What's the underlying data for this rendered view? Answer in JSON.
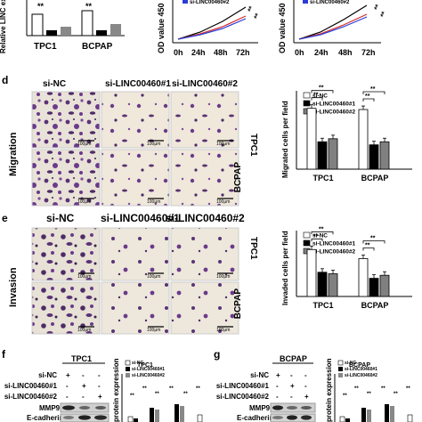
{
  "panels": {
    "top": {
      "qpcr": {
        "ylabel": "Relative LINC expression",
        "groups": [
          "TPC1",
          "BCPAP"
        ],
        "sig": [
          "**",
          "**"
        ]
      },
      "cck8_a": {
        "ylabel": "OD value 450",
        "legend": "si-LINC00460#2",
        "x": [
          "0h",
          "24h",
          "48h",
          "72h"
        ],
        "sig": [
          "**",
          "**"
        ]
      },
      "cck8_b": {
        "ylabel": "OD value 450",
        "legend": "si-LINC00460#2",
        "x": [
          "0h",
          "24h",
          "48h",
          "72h"
        ],
        "sig": [
          "**",
          "**"
        ]
      }
    },
    "d": {
      "letter": "d",
      "row_title": "Migration",
      "col_titles": [
        "si-NC",
        "si-LINC00460#1",
        "si-LINC00460#2"
      ],
      "row_labels": [
        "TPC1",
        "BCPAP"
      ],
      "scale": "100μm"
    },
    "e": {
      "letter": "e",
      "row_title": "Invasion",
      "col_titles": [
        "si-NC",
        "si-LINC00460#1",
        "si-LINC00460#2"
      ],
      "row_labels": [
        "TPC1",
        "BCPAP"
      ],
      "scale": "100μm"
    },
    "f": {
      "letter": "f",
      "blot_title": "TPC1",
      "row_labels": [
        "si-NC",
        "si-LINC00460#1",
        "si-LINC00460#2"
      ],
      "signs": [
        [
          "+",
          "-",
          "-"
        ],
        [
          "-",
          "+",
          "-"
        ],
        [
          "-",
          "-",
          "+"
        ]
      ],
      "proteins": [
        "MMP9",
        "E-cadherin"
      ],
      "chart_title": "TPC1",
      "ylabel": "protein expression",
      "legend": [
        "si-NC",
        "si-LINC00460#1",
        "si-LINC00460#2"
      ],
      "sig": "**"
    },
    "g": {
      "letter": "g",
      "blot_title": "BCPAP",
      "row_labels": [
        "si-NC",
        "si-LINC00460#1",
        "si-LINC00460#2"
      ],
      "signs": [
        [
          "+",
          "-",
          "-"
        ],
        [
          "-",
          "+",
          "-"
        ],
        [
          "-",
          "-",
          "+"
        ]
      ],
      "proteins": [
        "MMP9",
        "E-cadherin"
      ],
      "chart_title": "BCPAP",
      "ylabel": "protein expression",
      "legend": [
        "si-NC",
        "si-LINC00460#1",
        "si-LINC00460#2"
      ],
      "sig": "**"
    }
  },
  "chart_data": [
    {
      "type": "bar",
      "title": "",
      "ylabel": "Migrated cells per field",
      "categories": [
        "TPC1",
        "BCPAP"
      ],
      "series": [
        {
          "name": "si-NC",
          "values": [
            100,
            98
          ]
        },
        {
          "name": "si-LINC00460#1",
          "values": [
            45,
            40
          ]
        },
        {
          "name": "si-LINC00460#2",
          "values": [
            50,
            45
          ]
        }
      ],
      "significance": "**",
      "colors": [
        "#ffffff",
        "#000000",
        "#808080"
      ]
    },
    {
      "type": "bar",
      "title": "",
      "ylabel": "Invaded cells per field",
      "categories": [
        "TPC1",
        "BCPAP"
      ],
      "series": [
        {
          "name": "si-NC",
          "values": [
            62,
            50
          ]
        },
        {
          "name": "si-LINC00460#1",
          "values": [
            32,
            24
          ]
        },
        {
          "name": "si-LINC00460#2",
          "values": [
            30,
            28
          ]
        }
      ],
      "significance": "**",
      "colors": [
        "#ffffff",
        "#000000",
        "#808080"
      ]
    }
  ]
}
